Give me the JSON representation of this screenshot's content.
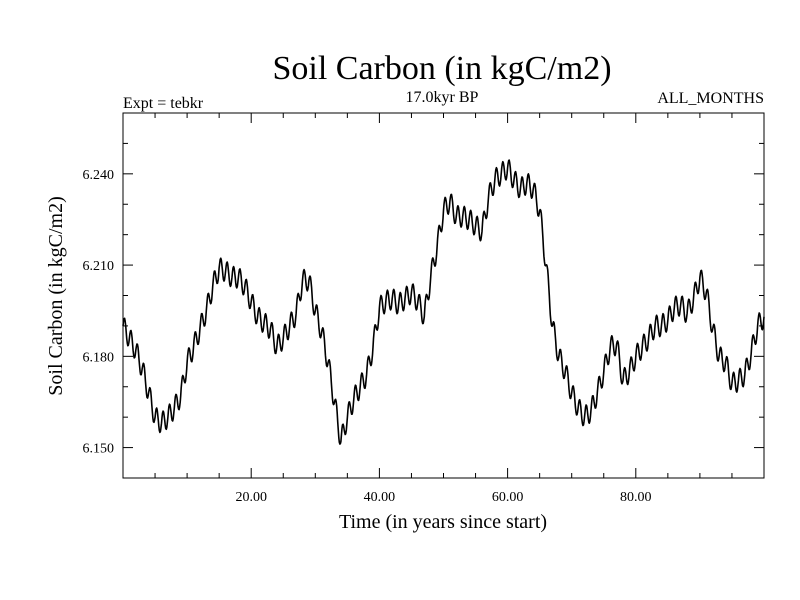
{
  "chart_data": {
    "type": "line",
    "title": "Soil Carbon (in kgC/m2)",
    "subtitle": "17.0kyr BP",
    "left_label": "Expt = tebkr",
    "right_label": "ALL_MONTHS",
    "xlabel": "Time (in years since start)",
    "ylabel": "Soil Carbon (in kgC/m2)",
    "xlim": [
      0,
      100
    ],
    "ylim": [
      6.14,
      6.26
    ],
    "xticks": [
      20,
      40,
      60,
      80
    ],
    "xtick_labels": [
      "20.00",
      "40.00",
      "60.00",
      "80.00"
    ],
    "yticks": [
      6.15,
      6.18,
      6.21,
      6.24
    ],
    "ytick_labels": [
      "6.150",
      "6.180",
      "6.210",
      "6.240"
    ],
    "series": [
      {
        "name": "Soil Carbon",
        "color": "#000000",
        "x": [
          0,
          1,
          2,
          3,
          4,
          5,
          6,
          7,
          8,
          9,
          10,
          11,
          12,
          13,
          14,
          15,
          16,
          17,
          18,
          19,
          20,
          21,
          22,
          23,
          24,
          25,
          26,
          27,
          28,
          29,
          30,
          31,
          32,
          33,
          34,
          35,
          36,
          37,
          38,
          39,
          40,
          41,
          42,
          43,
          44,
          45,
          46,
          47,
          48,
          49,
          50,
          51,
          52,
          53,
          54,
          55,
          56,
          57,
          58,
          59,
          60,
          61,
          62,
          63,
          64,
          65,
          66,
          67,
          68,
          69,
          70,
          71,
          72,
          73,
          74,
          75,
          76,
          77,
          78,
          79,
          80,
          81,
          82,
          83,
          84,
          85,
          86,
          87,
          88,
          89,
          90,
          91,
          92,
          93,
          94,
          95,
          96,
          97,
          98,
          99,
          100
        ],
        "values": [
          6.19,
          6.186,
          6.182,
          6.176,
          6.168,
          6.16,
          6.158,
          6.16,
          6.163,
          6.167,
          6.178,
          6.183,
          6.189,
          6.195,
          6.203,
          6.209,
          6.208,
          6.206,
          6.206,
          6.203,
          6.198,
          6.193,
          6.191,
          6.189,
          6.183,
          6.186,
          6.19,
          6.194,
          6.205,
          6.205,
          6.195,
          6.188,
          6.178,
          6.165,
          6.152,
          6.16,
          6.166,
          6.17,
          6.174,
          6.183,
          6.196,
          6.198,
          6.199,
          6.197,
          6.199,
          6.201,
          6.198,
          6.193,
          6.206,
          6.216,
          6.228,
          6.231,
          6.226,
          6.226,
          6.225,
          6.223,
          6.221,
          6.232,
          6.238,
          6.24,
          6.242,
          6.238,
          6.235,
          6.237,
          6.235,
          6.228,
          6.21,
          6.19,
          6.18,
          6.175,
          6.168,
          6.163,
          6.16,
          6.162,
          6.168,
          6.175,
          6.183,
          6.184,
          6.172,
          6.175,
          6.18,
          6.183,
          6.186,
          6.19,
          6.19,
          6.192,
          6.196,
          6.197,
          6.194,
          6.199,
          6.206,
          6.201,
          6.189,
          6.18,
          6.178,
          6.171,
          6.172,
          6.174,
          6.181,
          6.19,
          6.193
        ]
      }
    ]
  }
}
